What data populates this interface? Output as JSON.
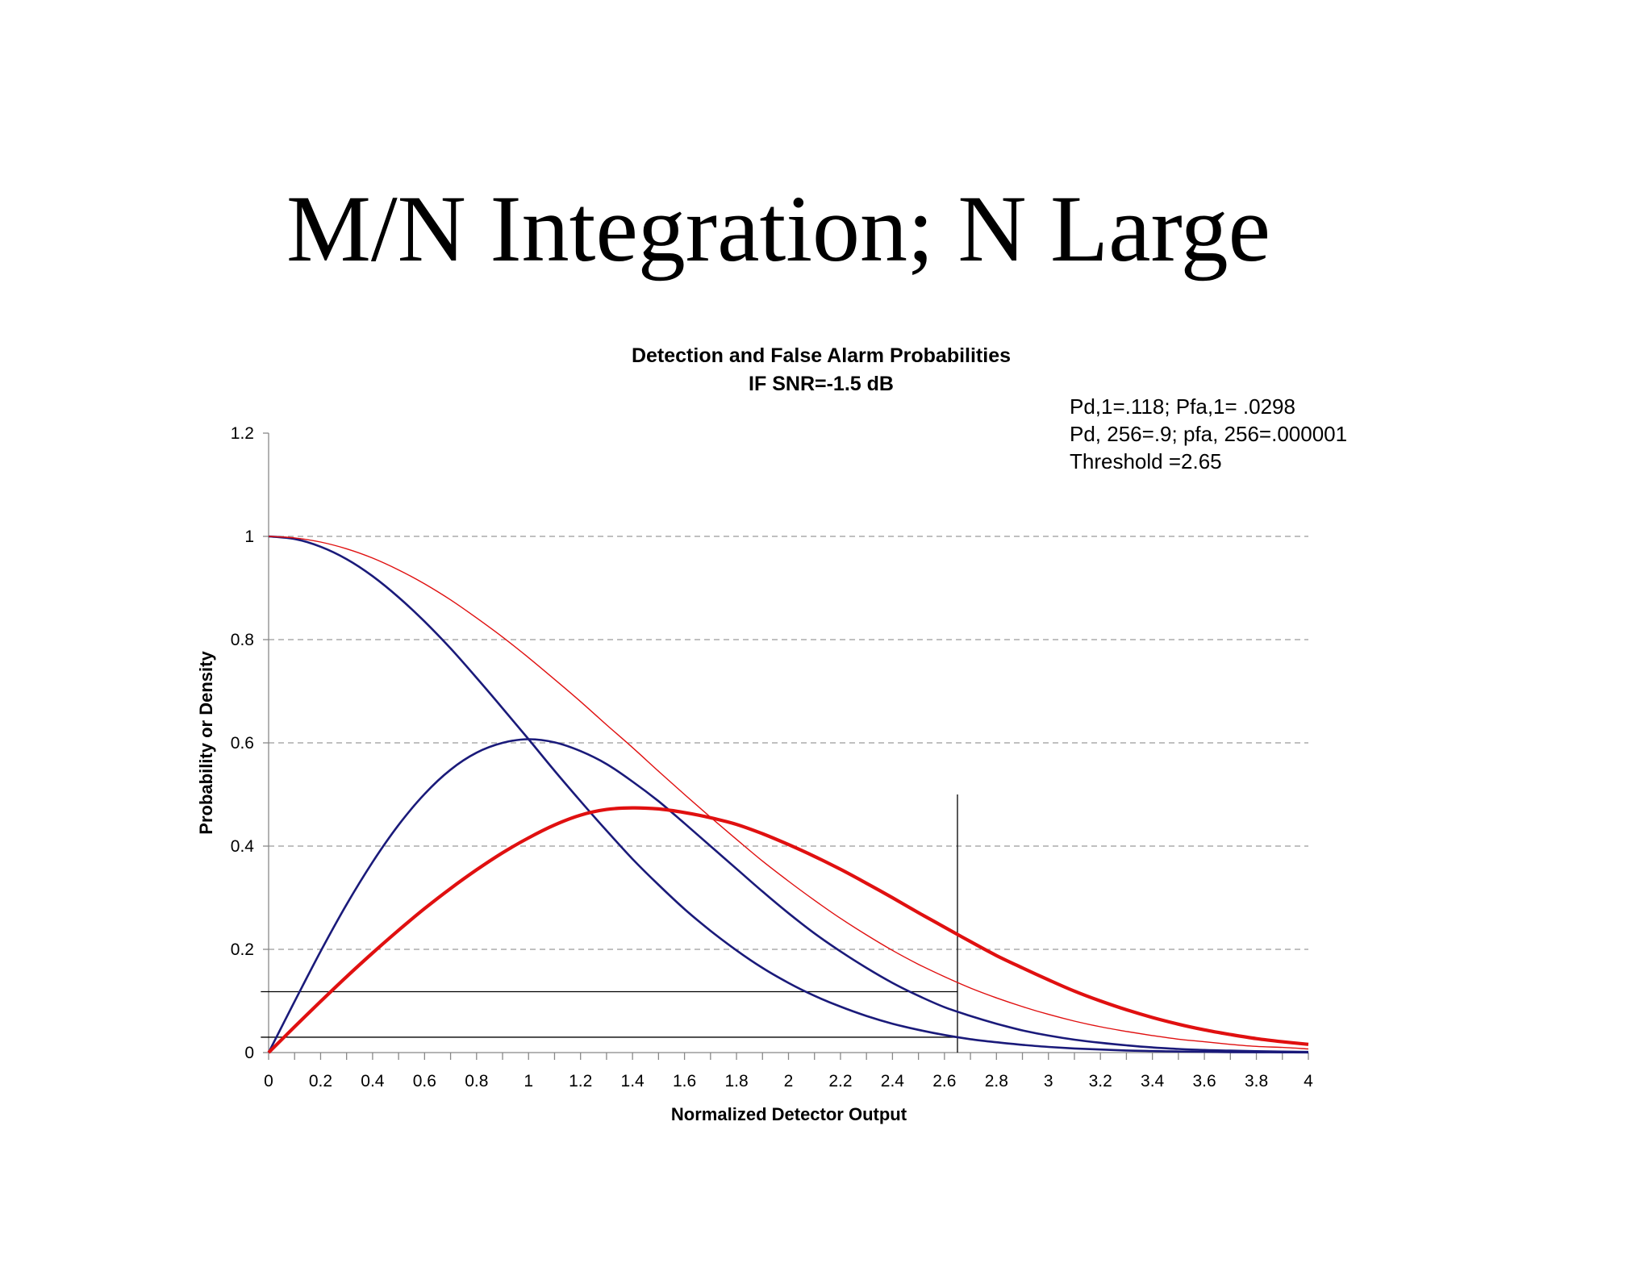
{
  "slide": {
    "title": "M/N Integration; N Large"
  },
  "chart_data": {
    "type": "line",
    "title": "Detection and False Alarm Probabilities",
    "subtitle": "IF SNR=-1.5 dB",
    "xlabel": "Normalized Detector Output",
    "ylabel": "Probability or Density",
    "xlim": [
      0,
      4
    ],
    "ylim": [
      0,
      1.2
    ],
    "x_ticks": [
      "0",
      "0.2",
      "0.4",
      "0.6",
      "0.8",
      "1",
      "1.2",
      "1.4",
      "1.6",
      "1.8",
      "2",
      "2.2",
      "2.4",
      "2.6",
      "2.8",
      "3",
      "3.2",
      "3.4",
      "3.6",
      "3.8",
      "4"
    ],
    "y_ticks": [
      "0",
      "0.2",
      "0.4",
      "0.6",
      "0.8",
      "1",
      "1.2"
    ],
    "grid": "horizontal dashed",
    "annotations": [
      "Pd,1=.118; Pfa,1= .0298",
      "Pd, 256=.9; pfa, 256=.000001",
      "Threshold =2.65"
    ],
    "colors": {
      "noise": "#1a1a7a",
      "signal": "#e01010",
      "reference": "#000000",
      "grid": "#9a9a9a"
    },
    "x": [
      0,
      0.1,
      0.2,
      0.3,
      0.4,
      0.5,
      0.6,
      0.7,
      0.8,
      0.9,
      1.0,
      1.1,
      1.2,
      1.3,
      1.4,
      1.5,
      1.6,
      1.7,
      1.8,
      1.9,
      2.0,
      2.1,
      2.2,
      2.3,
      2.4,
      2.5,
      2.6,
      2.7,
      2.8,
      2.9,
      3.0,
      3.1,
      3.2,
      3.3,
      3.4,
      3.5,
      3.6,
      3.7,
      3.8,
      3.9,
      4.0
    ],
    "series": [
      {
        "style": "navy-thin",
        "values": [
          1,
          0.995,
          0.98,
          0.956,
          0.923,
          0.882,
          0.835,
          0.783,
          0.726,
          0.667,
          0.607,
          0.546,
          0.487,
          0.43,
          0.375,
          0.325,
          0.278,
          0.236,
          0.198,
          0.164,
          0.135,
          0.11,
          0.089,
          0.071,
          0.056,
          0.044,
          0.034,
          0.026,
          0.02,
          0.015,
          0.011,
          0.008,
          0.006,
          0.004,
          0.003,
          0.002,
          0.0015,
          0.001,
          0.0007,
          0.0005,
          0.0003
        ]
      },
      {
        "style": "navy-thin",
        "values": [
          0,
          0.099,
          0.196,
          0.287,
          0.369,
          0.441,
          0.501,
          0.548,
          0.581,
          0.6,
          0.607,
          0.601,
          0.584,
          0.559,
          0.525,
          0.487,
          0.444,
          0.4,
          0.356,
          0.312,
          0.27,
          0.231,
          0.196,
          0.164,
          0.135,
          0.11,
          0.088,
          0.071,
          0.056,
          0.043,
          0.033,
          0.025,
          0.019,
          0.014,
          0.01,
          0.007,
          0.005,
          0.0037,
          0.0026,
          0.0018,
          0.0013
        ]
      },
      {
        "style": "red-thin",
        "values": [
          1,
          0.997,
          0.989,
          0.976,
          0.958,
          0.935,
          0.908,
          0.877,
          0.842,
          0.805,
          0.765,
          0.723,
          0.68,
          0.635,
          0.591,
          0.545,
          0.5,
          0.456,
          0.413,
          0.371,
          0.332,
          0.295,
          0.26,
          0.228,
          0.198,
          0.171,
          0.147,
          0.125,
          0.106,
          0.089,
          0.074,
          0.061,
          0.05,
          0.041,
          0.033,
          0.026,
          0.021,
          0.016,
          0.012,
          0.01,
          0.007
        ]
      },
      {
        "style": "red-thick",
        "values": [
          0,
          0.05,
          0.099,
          0.147,
          0.193,
          0.237,
          0.279,
          0.318,
          0.354,
          0.387,
          0.416,
          0.441,
          0.46,
          0.471,
          0.474,
          0.472,
          0.465,
          0.455,
          0.442,
          0.424,
          0.403,
          0.38,
          0.355,
          0.328,
          0.3,
          0.271,
          0.243,
          0.215,
          0.188,
          0.164,
          0.141,
          0.119,
          0.1,
          0.083,
          0.068,
          0.055,
          0.044,
          0.035,
          0.027,
          0.021,
          0.016
        ]
      }
    ],
    "reference_lines": [
      {
        "axis": "y",
        "value": 0.118,
        "from_x": -0.03,
        "to_x": 2.65
      },
      {
        "axis": "y",
        "value": 0.0298,
        "from_x": -0.03,
        "to_x": 2.65
      },
      {
        "axis": "x",
        "value": 2.65,
        "from_y": 0,
        "to_y": 0.5
      }
    ]
  }
}
